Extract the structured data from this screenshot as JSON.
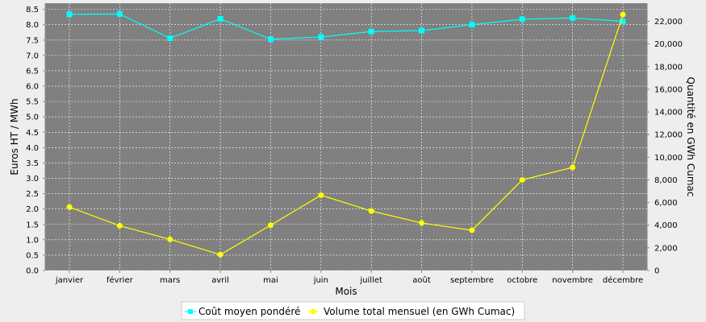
{
  "chart_data": {
    "type": "line",
    "categories": [
      "janvier",
      "février",
      "mars",
      "avril",
      "mai",
      "juin",
      "juillet",
      "août",
      "septembre",
      "octobre",
      "novembre",
      "décembre"
    ],
    "xlabel": "Mois",
    "ylabel": "Euros HT / MWh",
    "y2label": "Quantité en GWh Cumac",
    "ylim": [
      0,
      8.7
    ],
    "y2lim": [
      0,
      23600
    ],
    "yticks": [
      "0.0",
      "0.5",
      "1.0",
      "1.5",
      "2.0",
      "2.5",
      "3.0",
      "3.5",
      "4.0",
      "4.5",
      "5.0",
      "5.5",
      "6.0",
      "6.5",
      "7.0",
      "7.5",
      "8.0",
      "8.5"
    ],
    "y2ticks": [
      "0",
      "2,000",
      "4,000",
      "6,000",
      "8,000",
      "10,000",
      "12,000",
      "14,000",
      "16,000",
      "18,000",
      "20,000",
      "22,000"
    ],
    "grid": true,
    "plot_background": "#808080",
    "legend_position": "bottom",
    "series": [
      {
        "name": "Coût moyen pondéré",
        "axis": "left",
        "color": "#00ffff",
        "marker": "square",
        "values": [
          8.34,
          8.35,
          7.56,
          8.19,
          7.53,
          7.6,
          7.78,
          7.81,
          8.0,
          8.18,
          8.22,
          8.11
        ]
      },
      {
        "name": "Volume total mensuel (en GWh Cumac)",
        "axis": "right",
        "color": "#ffff00",
        "marker": "circle",
        "values": [
          5600,
          3950,
          2750,
          1400,
          4000,
          6650,
          5250,
          4200,
          3550,
          8000,
          9100,
          22600
        ]
      }
    ]
  }
}
